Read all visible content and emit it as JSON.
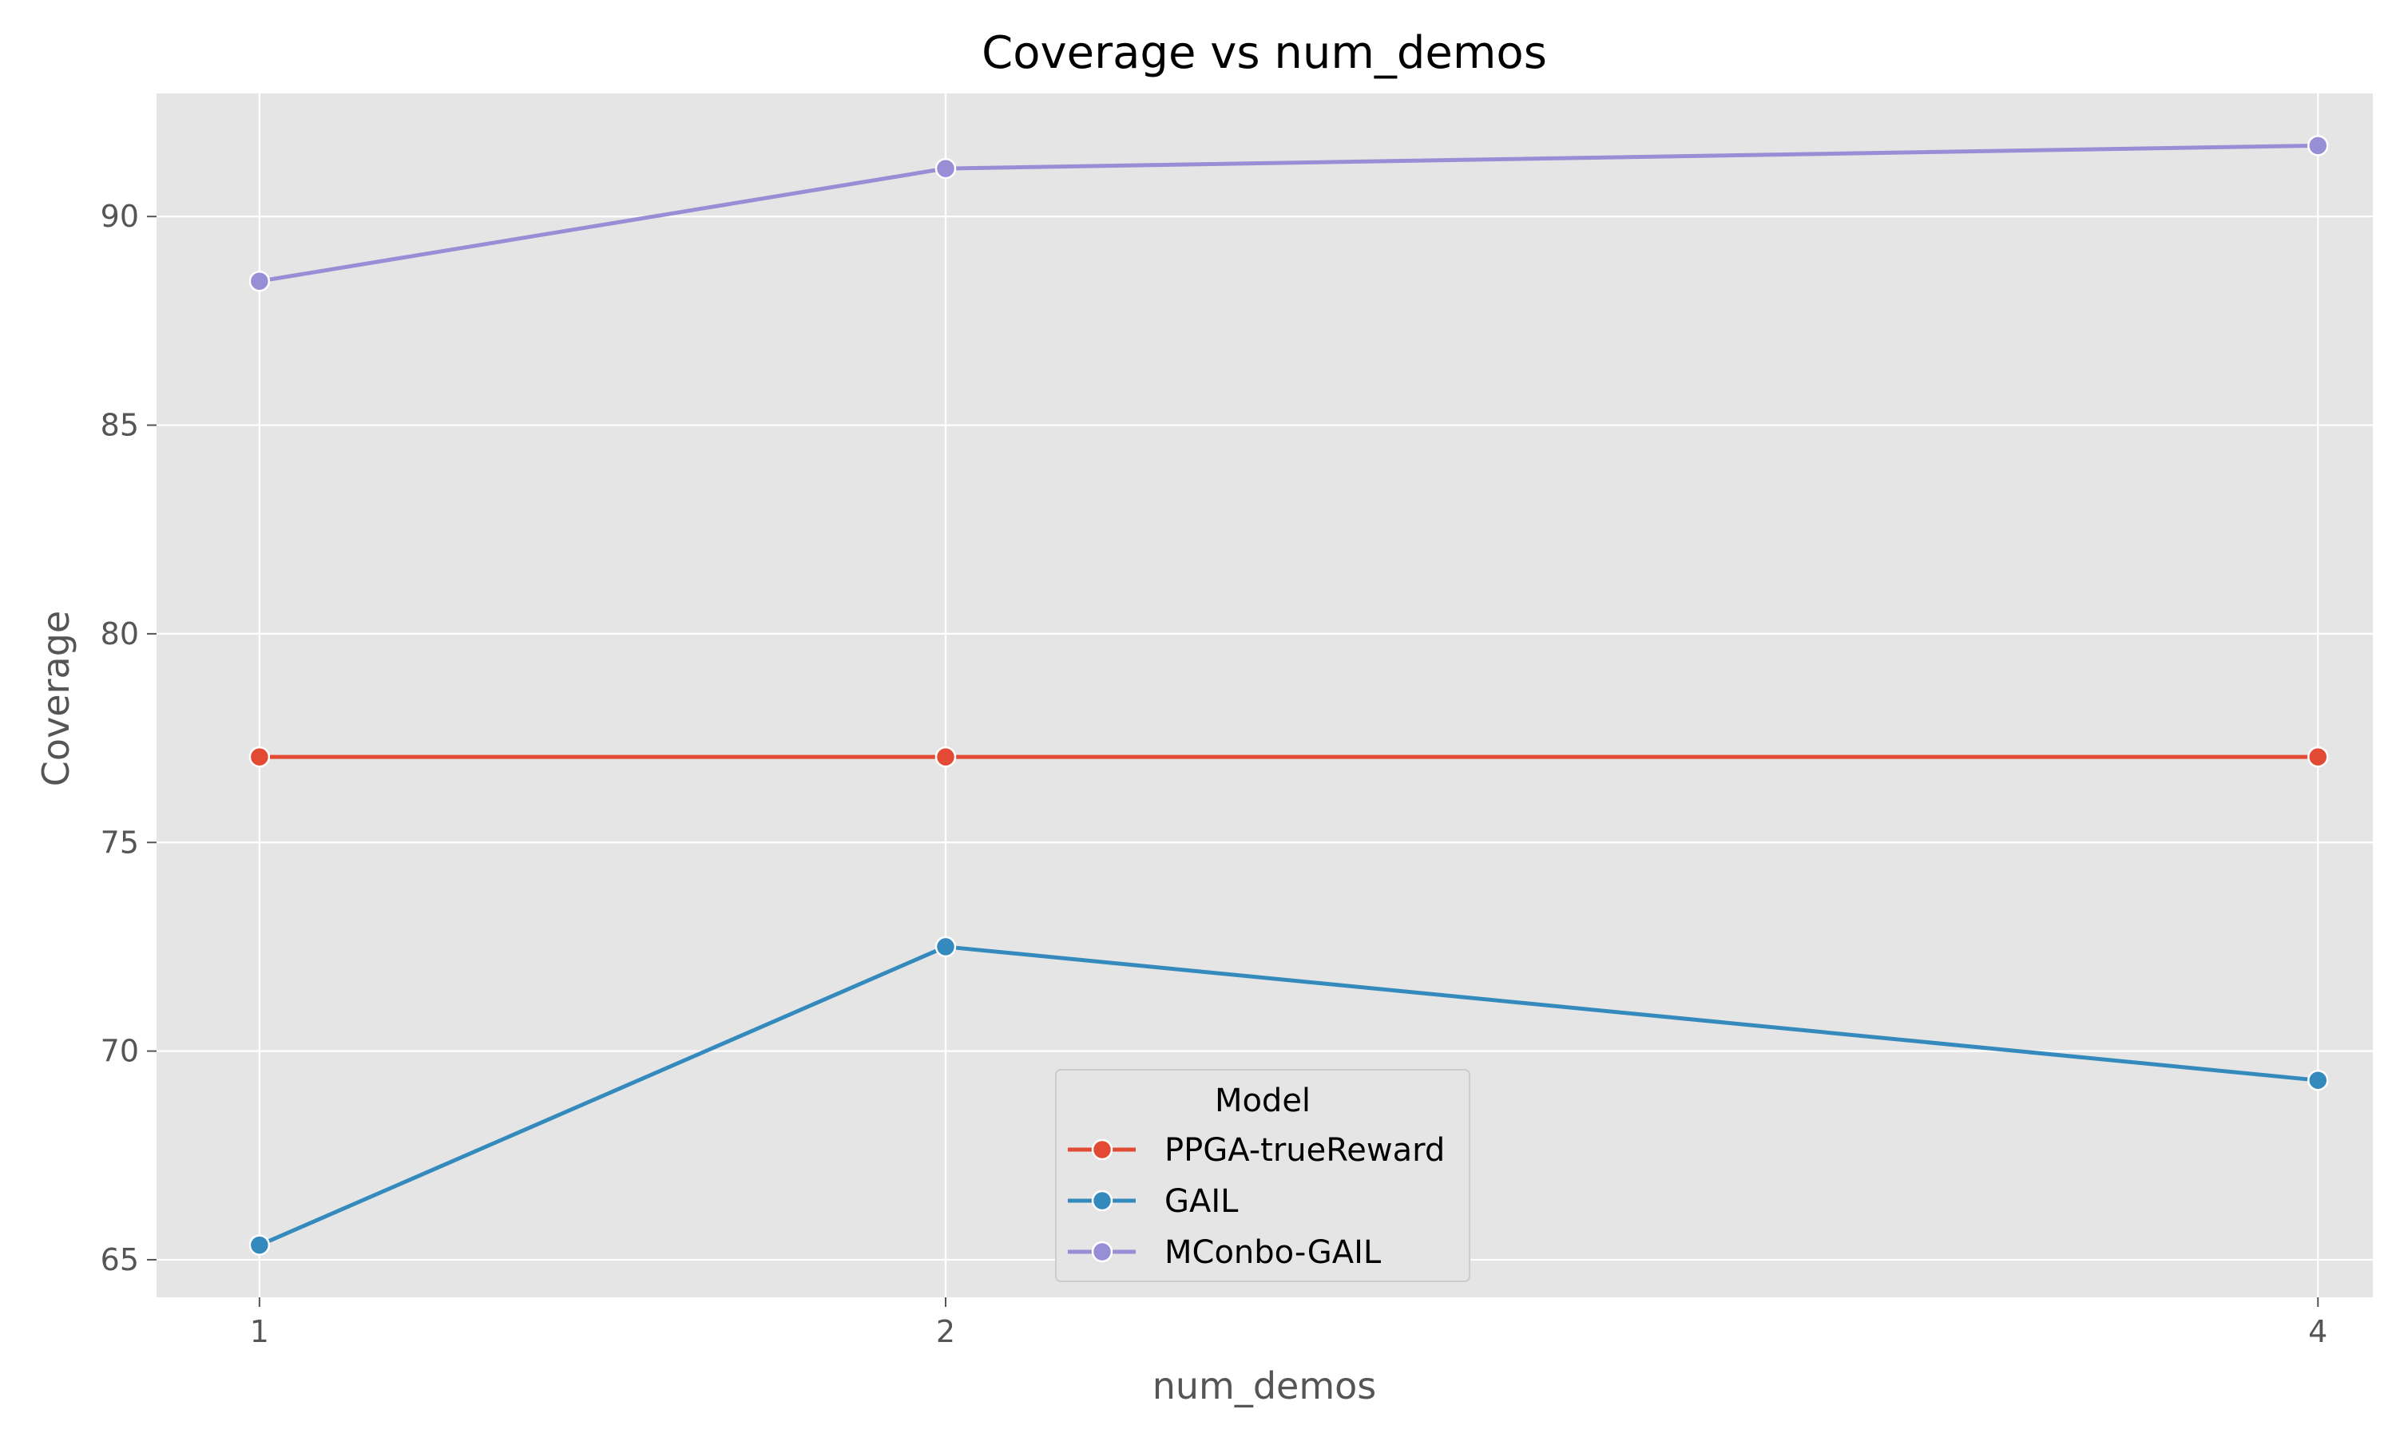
{
  "chart_data": {
    "type": "line",
    "title": "Coverage vs num_demos",
    "xlabel": "num_demos",
    "ylabel": "Coverage",
    "x": [
      1,
      2,
      4
    ],
    "x_tick_labels": [
      "1",
      "2",
      "4"
    ],
    "xlim": [
      0.85,
      4.08
    ],
    "ylim": [
      64.1,
      92.95
    ],
    "y_ticks": [
      65,
      70,
      75,
      80,
      85,
      90
    ],
    "grid": true,
    "legend": {
      "title": "Model",
      "position": "bottom-center"
    },
    "series": [
      {
        "name": "PPGA-trueReward",
        "color": "#E24A33",
        "values": [
          77.05,
          77.05,
          77.05
        ]
      },
      {
        "name": "GAIL",
        "color": "#348ABD",
        "values": [
          65.35,
          72.5,
          69.3
        ]
      },
      {
        "name": "MConbo-GAIL",
        "color": "#988ED5",
        "values": [
          88.45,
          91.15,
          91.7
        ]
      }
    ]
  }
}
